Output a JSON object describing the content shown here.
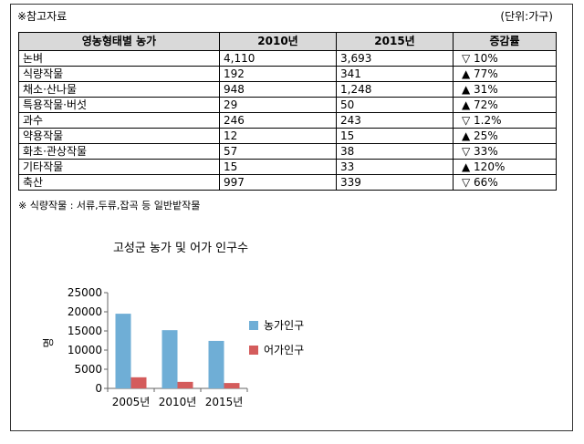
{
  "header": {
    "title": "※참고자료",
    "unit": "(단위:가구)"
  },
  "footnote": "※ 식량작물 : 서류,두류,잡곡 등 일반밭작물",
  "chart_data": [
    {
      "type": "table",
      "columns": [
        "영농형태별 농가",
        "2010년",
        "2015년",
        "증감률"
      ],
      "rows": [
        [
          "논벼",
          "4,110",
          "3,693",
          "▽ 10%"
        ],
        [
          "식량작물",
          "192",
          "341",
          "▲ 77%"
        ],
        [
          "채소·산나물",
          "948",
          "1,248",
          "▲ 31%"
        ],
        [
          "특용작물·버섯",
          "29",
          "50",
          "▲ 72%"
        ],
        [
          "과수",
          "246",
          "243",
          "▽ 1.2%"
        ],
        [
          "약용작물",
          "12",
          "15",
          "▲ 25%"
        ],
        [
          "화초·관상작물",
          "57",
          "38",
          "▽ 33%"
        ],
        [
          "기타작물",
          "15",
          "33",
          "▲ 120%"
        ],
        [
          "축산",
          "997",
          "339",
          "▽ 66%"
        ]
      ]
    },
    {
      "type": "bar",
      "title": "고성군 농가 및 어가 인구수",
      "categories": [
        "2005년",
        "2010년",
        "2015년"
      ],
      "series": [
        {
          "name": "농가인구",
          "values": [
            19500,
            15200,
            12400
          ],
          "color": "#6faed6"
        },
        {
          "name": "어가인구",
          "values": [
            2900,
            1700,
            1400
          ],
          "color": "#d45c5c"
        }
      ],
      "ylabel": "명",
      "ylim": [
        0,
        25000
      ],
      "yticks": [
        0,
        5000,
        10000,
        15000,
        20000,
        25000
      ],
      "grid": false,
      "legend": "right"
    }
  ]
}
